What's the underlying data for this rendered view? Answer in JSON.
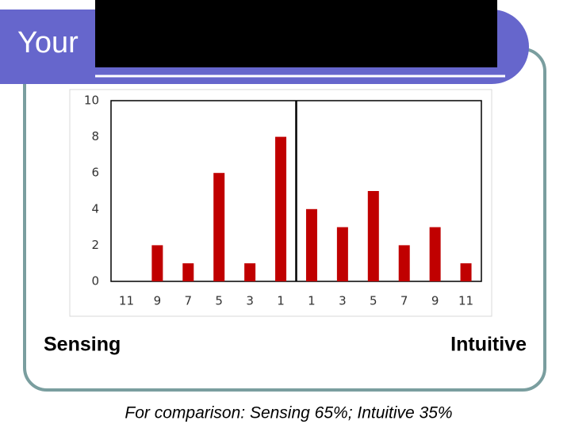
{
  "title": "Your",
  "chart_data": {
    "type": "bar",
    "categories": [
      "11",
      "9",
      "7",
      "5",
      "3",
      "1",
      "1",
      "3",
      "5",
      "7",
      "9",
      "11"
    ],
    "values": [
      0,
      2,
      1,
      6,
      1,
      8,
      4,
      3,
      5,
      2,
      3,
      1
    ],
    "color": "#c00000",
    "ylim": [
      0,
      10
    ],
    "yticks": [
      0,
      2,
      4,
      6,
      8,
      10
    ],
    "grid": false,
    "left_label": "Sensing",
    "right_label": "Intuitive"
  },
  "footnote": "For comparison: Sensing 65%; Intuitive 35%"
}
